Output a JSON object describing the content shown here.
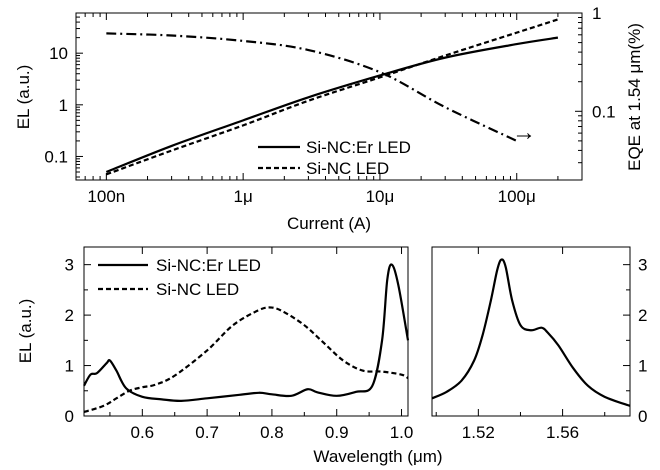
{
  "chart_data": [
    {
      "id": "top",
      "type": "line",
      "xlabel": "Current (A)",
      "ylabel": "EL  (a.u.)",
      "y2label": "EQE at 1.54 μm(%)",
      "xscale": "log",
      "yscale": "log",
      "y2scale": "log",
      "xlim": [
        6e-08,
        0.0003
      ],
      "ylim": [
        0.035,
        60
      ],
      "y2lim": [
        0.02,
        1.0
      ],
      "xticks": [
        1e-07,
        1e-06,
        1e-05,
        0.0001
      ],
      "xtick_labels": [
        "100n",
        "1μ",
        "10μ",
        "100μ"
      ],
      "yticks": [
        0.1,
        1,
        10
      ],
      "ytick_labels": [
        "0.1",
        "1",
        "10"
      ],
      "y2ticks": [
        0.1,
        1
      ],
      "y2tick_labels": [
        "0.1",
        "1"
      ],
      "annotation": "→",
      "legend": [
        "Si-NC:Er LED",
        "Si-NC LED"
      ],
      "series": [
        {
          "name": "Si-NC:Er LED",
          "style": "solid",
          "axis": "left",
          "x": [
            1e-07,
            3e-07,
            1e-06,
            3e-06,
            1e-05,
            3e-05,
            0.0001,
            0.0002
          ],
          "y": [
            0.05,
            0.16,
            0.5,
            1.4,
            3.7,
            8.2,
            15,
            20
          ]
        },
        {
          "name": "Si-NC LED",
          "style": "dashed",
          "axis": "left",
          "x": [
            1e-07,
            3e-07,
            1e-06,
            3e-06,
            1e-05,
            3e-05,
            0.0001,
            0.0002
          ],
          "y": [
            0.045,
            0.13,
            0.4,
            1.2,
            3.4,
            9,
            25,
            45
          ]
        },
        {
          "name": "EQE",
          "style": "dashdot",
          "axis": "right",
          "x": [
            1e-07,
            3e-07,
            1e-06,
            3e-06,
            1e-05,
            3e-05,
            0.0001
          ],
          "y": [
            0.62,
            0.59,
            0.52,
            0.42,
            0.25,
            0.11,
            0.05
          ]
        }
      ]
    },
    {
      "id": "bottom-left",
      "type": "line",
      "xlabel": "Wavelength (μm)",
      "ylabel": "EL (a.u.)",
      "xlim": [
        0.51,
        1.01
      ],
      "ylim": [
        0,
        3.35
      ],
      "xticks": [
        0.6,
        0.7,
        0.8,
        0.9,
        1.0
      ],
      "xtick_labels": [
        "0.6",
        "0.7",
        "0.8",
        "0.9",
        "1.0"
      ],
      "yticks": [
        0,
        1,
        2,
        3
      ],
      "ytick_labels": [
        "0",
        "1",
        "2",
        "3"
      ],
      "legend": [
        "Si-NC:Er LED",
        "Si-NC LED"
      ],
      "series": [
        {
          "name": "Si-NC:Er LED",
          "style": "solid",
          "x": [
            0.51,
            0.52,
            0.53,
            0.545,
            0.55,
            0.56,
            0.575,
            0.6,
            0.63,
            0.66,
            0.7,
            0.75,
            0.78,
            0.8,
            0.83,
            0.855,
            0.87,
            0.9,
            0.93,
            0.955,
            0.97,
            0.978,
            0.985,
            0.995,
            1.01
          ],
          "y": [
            0.6,
            0.82,
            0.85,
            1.05,
            1.1,
            0.9,
            0.55,
            0.38,
            0.33,
            0.3,
            0.35,
            0.42,
            0.46,
            0.43,
            0.4,
            0.53,
            0.47,
            0.4,
            0.48,
            0.6,
            1.5,
            2.7,
            3.0,
            2.6,
            1.5
          ]
        },
        {
          "name": "Si-NC LED",
          "style": "dashed",
          "x": [
            0.51,
            0.54,
            0.56,
            0.58,
            0.6,
            0.62,
            0.65,
            0.7,
            0.74,
            0.78,
            0.8,
            0.82,
            0.85,
            0.88,
            0.91,
            0.94,
            0.97,
            1.0,
            1.01
          ],
          "y": [
            0.08,
            0.2,
            0.35,
            0.5,
            0.57,
            0.62,
            0.8,
            1.3,
            1.8,
            2.1,
            2.15,
            2.05,
            1.8,
            1.45,
            1.1,
            0.9,
            0.88,
            0.82,
            0.75
          ]
        }
      ]
    },
    {
      "id": "bottom-right",
      "type": "line",
      "xlim": [
        1.498,
        1.592
      ],
      "ylim": [
        0,
        3.35
      ],
      "xticks": [
        1.52,
        1.56
      ],
      "xtick_labels": [
        "1.52",
        "1.56"
      ],
      "yticks": [
        0,
        1,
        2,
        3
      ],
      "ytick_labels": [
        "0",
        "1",
        "2",
        "3"
      ],
      "series": [
        {
          "name": "",
          "style": "solid",
          "x": [
            1.498,
            1.505,
            1.512,
            1.518,
            1.522,
            1.526,
            1.529,
            1.531,
            1.533,
            1.536,
            1.54,
            1.545,
            1.55,
            1.553,
            1.558,
            1.565,
            1.572,
            1.58,
            1.592
          ],
          "y": [
            0.35,
            0.48,
            0.7,
            1.1,
            1.6,
            2.3,
            2.9,
            3.1,
            2.95,
            2.3,
            1.8,
            1.7,
            1.75,
            1.65,
            1.4,
            0.95,
            0.6,
            0.38,
            0.2
          ]
        }
      ]
    }
  ]
}
